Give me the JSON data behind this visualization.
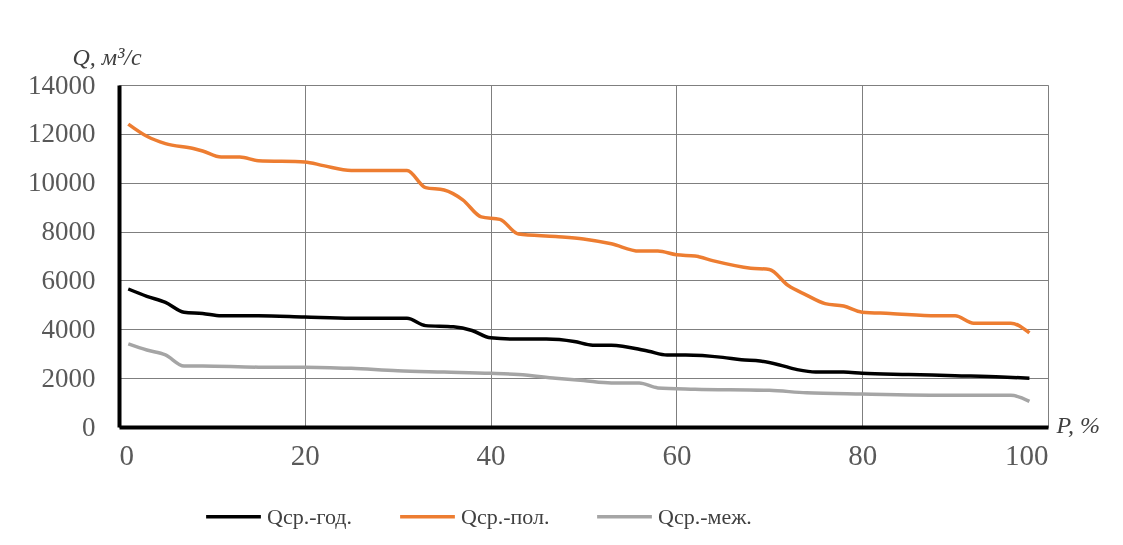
{
  "chart_data": {
    "type": "line",
    "xlabel": "P, %",
    "ylabel": "Q, м³/с",
    "xlim": [
      0,
      100
    ],
    "xticks": [
      0,
      20,
      40,
      60,
      80,
      100
    ],
    "ylim": [
      0,
      14000
    ],
    "yticks": [
      0,
      2000,
      4000,
      6000,
      8000,
      10000,
      12000,
      14000
    ],
    "grid": true,
    "legend": "bottom",
    "marker": "none",
    "line_style": "solid",
    "series": [
      {
        "name": "Qср.-год.",
        "color": "#000000",
        "x": [
          1,
          3,
          5,
          7,
          9,
          11,
          15,
          20,
          25,
          31,
          33,
          36,
          38,
          40,
          43,
          46,
          49,
          51,
          53,
          57,
          59,
          61,
          65,
          67,
          69,
          71,
          73,
          75,
          78,
          80,
          85,
          90,
          95,
          98
        ],
        "values": [
          5650,
          5350,
          5100,
          4700,
          4650,
          4550,
          4550,
          4500,
          4450,
          4450,
          4150,
          4100,
          3950,
          3650,
          3600,
          3600,
          3500,
          3350,
          3350,
          3100,
          2950,
          2950,
          2850,
          2750,
          2700,
          2550,
          2350,
          2250,
          2250,
          2200,
          2150,
          2100,
          2050,
          2000
        ]
      },
      {
        "name": "Qср.-пол.",
        "color": "#ed7d31",
        "x": [
          1,
          3,
          5,
          8,
          9,
          11,
          13,
          15,
          20,
          22,
          25,
          29,
          31,
          33,
          35,
          37,
          39,
          41,
          43,
          47,
          50,
          53,
          56,
          58,
          60,
          62,
          64,
          68,
          70,
          72,
          74,
          76,
          78,
          80,
          83,
          88,
          90,
          92,
          96,
          98
        ],
        "values": [
          12400,
          11900,
          11600,
          11400,
          11300,
          11050,
          11050,
          10900,
          10850,
          10700,
          10500,
          10500,
          10500,
          9800,
          9700,
          9300,
          8600,
          8500,
          7900,
          7800,
          7700,
          7500,
          7200,
          7200,
          7050,
          7000,
          6800,
          6500,
          6450,
          5800,
          5400,
          5050,
          4950,
          4700,
          4650,
          4550,
          4550,
          4250,
          4250,
          3850
        ]
      },
      {
        "name": "Qср.-меж.",
        "color": "#a5a5a5",
        "x": [
          1,
          3,
          5,
          7,
          9,
          15,
          20,
          25,
          30,
          35,
          40,
          43,
          47,
          50,
          53,
          56,
          58,
          62,
          70,
          74,
          80,
          90,
          96,
          98
        ],
        "values": [
          3400,
          3150,
          2950,
          2500,
          2500,
          2450,
          2450,
          2400,
          2300,
          2250,
          2200,
          2150,
          2000,
          1900,
          1800,
          1800,
          1600,
          1550,
          1500,
          1400,
          1350,
          1300,
          1300,
          1050
        ]
      }
    ]
  }
}
